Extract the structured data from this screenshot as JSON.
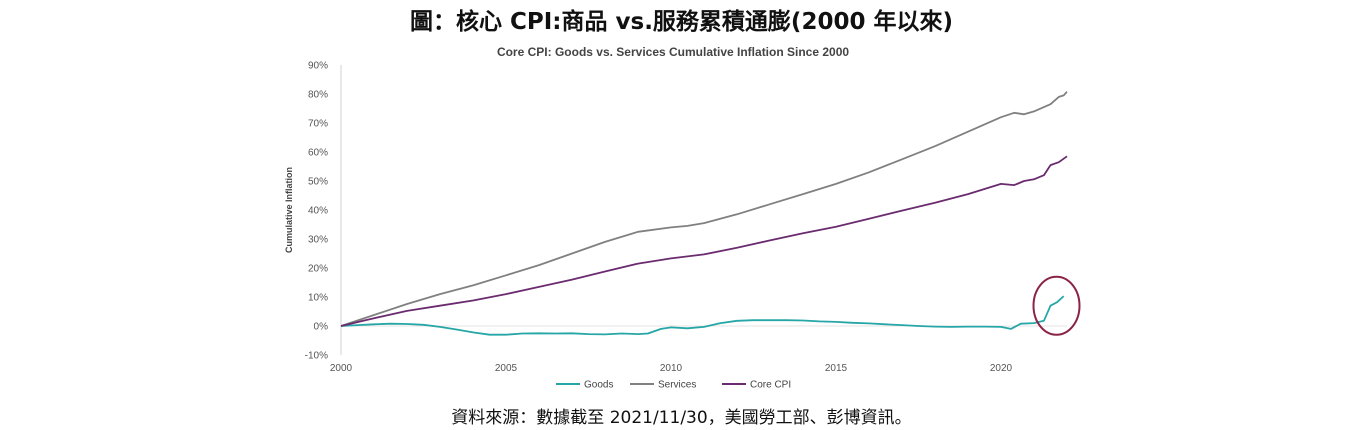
{
  "figure": {
    "title": "圖：核心 CPI:商品 vs.服務累積通膨(2000 年以來)",
    "source": "資料來源：數據截至 2021/11/30，美國勞工部、彭博資訊。"
  },
  "chart_data": {
    "type": "line",
    "title": "Core CPI: Goods vs. Services Cumulative Inflation Since 2000",
    "xlabel": "",
    "ylabel": "Cumulative Inflation",
    "xlim": [
      2000,
      2022
    ],
    "ylim": [
      -10,
      90
    ],
    "x_ticks": [
      2000,
      2005,
      2010,
      2015,
      2020
    ],
    "x_tick_labels": [
      "2000",
      "2005",
      "2010",
      "2015",
      "2020"
    ],
    "y_ticks": [
      -10,
      0,
      10,
      20,
      30,
      40,
      50,
      60,
      70,
      80,
      90
    ],
    "y_tick_labels": [
      "-10%",
      "0%",
      "10%",
      "20%",
      "30%",
      "40%",
      "50%",
      "60%",
      "70%",
      "80%",
      "90%"
    ],
    "grid": false,
    "legend_position": "bottom",
    "highlight": {
      "shape": "circle",
      "color": "#8b2346",
      "x_range": [
        2021,
        2022
      ]
    },
    "series": [
      {
        "name": "Goods",
        "color": "#26a6a6",
        "points": [
          [
            2000,
            0
          ],
          [
            2000.5,
            0.3
          ],
          [
            2001,
            0.6
          ],
          [
            2001.5,
            0.8
          ],
          [
            2002,
            0.7
          ],
          [
            2002.5,
            0.4
          ],
          [
            2003,
            -0.3
          ],
          [
            2003.5,
            -1.2
          ],
          [
            2004,
            -2.2
          ],
          [
            2004.5,
            -3.0
          ],
          [
            2005,
            -3.0
          ],
          [
            2005.5,
            -2.6
          ],
          [
            2006,
            -2.5
          ],
          [
            2006.5,
            -2.6
          ],
          [
            2007,
            -2.5
          ],
          [
            2007.5,
            -2.8
          ],
          [
            2008,
            -2.9
          ],
          [
            2008.5,
            -2.6
          ],
          [
            2009,
            -2.8
          ],
          [
            2009.3,
            -2.6
          ],
          [
            2009.7,
            -1.0
          ],
          [
            2010,
            -0.5
          ],
          [
            2010.5,
            -0.8
          ],
          [
            2011,
            -0.3
          ],
          [
            2011.5,
            1.0
          ],
          [
            2012,
            1.8
          ],
          [
            2012.5,
            2.0
          ],
          [
            2013,
            2.0
          ],
          [
            2013.5,
            2.0
          ],
          [
            2014,
            1.9
          ],
          [
            2014.5,
            1.6
          ],
          [
            2015,
            1.4
          ],
          [
            2015.5,
            1.1
          ],
          [
            2016,
            0.9
          ],
          [
            2016.5,
            0.6
          ],
          [
            2017,
            0.3
          ],
          [
            2017.5,
            0.0
          ],
          [
            2018,
            -0.2
          ],
          [
            2018.5,
            -0.3
          ],
          [
            2019,
            -0.2
          ],
          [
            2019.5,
            -0.2
          ],
          [
            2020,
            -0.3
          ],
          [
            2020.3,
            -1.0
          ],
          [
            2020.6,
            0.8
          ],
          [
            2021,
            1.0
          ],
          [
            2021.3,
            1.8
          ],
          [
            2021.5,
            7.0
          ],
          [
            2021.7,
            8.2
          ],
          [
            2021.9,
            10.3
          ]
        ]
      },
      {
        "name": "Services",
        "color": "#808080",
        "points": [
          [
            2000,
            0
          ],
          [
            2001,
            3.8
          ],
          [
            2002,
            7.6
          ],
          [
            2003,
            11.0
          ],
          [
            2004,
            14.0
          ],
          [
            2005,
            17.5
          ],
          [
            2006,
            21.0
          ],
          [
            2007,
            25.0
          ],
          [
            2008,
            29.0
          ],
          [
            2009,
            32.5
          ],
          [
            2010,
            34.0
          ],
          [
            2010.5,
            34.5
          ],
          [
            2011,
            35.5
          ],
          [
            2012,
            38.5
          ],
          [
            2013,
            42.0
          ],
          [
            2014,
            45.5
          ],
          [
            2015,
            49.0
          ],
          [
            2016,
            53.0
          ],
          [
            2017,
            57.5
          ],
          [
            2018,
            62.0
          ],
          [
            2019,
            67.0
          ],
          [
            2020,
            72.0
          ],
          [
            2020.4,
            73.5
          ],
          [
            2020.7,
            73.0
          ],
          [
            2021,
            74.0
          ],
          [
            2021.5,
            76.5
          ],
          [
            2021.75,
            79.0
          ],
          [
            2021.9,
            79.5
          ],
          [
            2022,
            80.8
          ]
        ]
      },
      {
        "name": "Core CPI",
        "color": "#6a2b6f",
        "points": [
          [
            2000,
            0
          ],
          [
            2001,
            2.7
          ],
          [
            2002,
            5.2
          ],
          [
            2003,
            7.0
          ],
          [
            2004,
            8.8
          ],
          [
            2005,
            11.0
          ],
          [
            2006,
            13.5
          ],
          [
            2007,
            16.0
          ],
          [
            2008,
            18.8
          ],
          [
            2009,
            21.5
          ],
          [
            2010,
            23.3
          ],
          [
            2011,
            24.7
          ],
          [
            2012,
            27.0
          ],
          [
            2013,
            29.5
          ],
          [
            2014,
            32.0
          ],
          [
            2015,
            34.2
          ],
          [
            2016,
            37.0
          ],
          [
            2017,
            39.8
          ],
          [
            2018,
            42.5
          ],
          [
            2019,
            45.5
          ],
          [
            2020,
            49.0
          ],
          [
            2020.4,
            48.6
          ],
          [
            2020.7,
            50.0
          ],
          [
            2021,
            50.6
          ],
          [
            2021.3,
            52.0
          ],
          [
            2021.5,
            55.5
          ],
          [
            2021.75,
            56.5
          ],
          [
            2022,
            58.5
          ]
        ]
      }
    ]
  }
}
